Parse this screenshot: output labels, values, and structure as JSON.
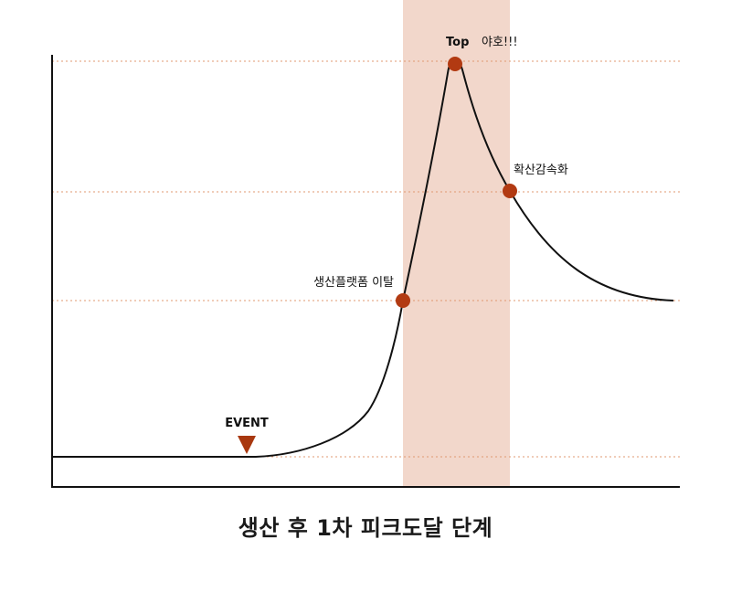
{
  "caption": "생산 후 1차 피크도달 단계",
  "labels": {
    "event": "EVENT",
    "top": "Top",
    "top_note": "야호!!!",
    "platform_exit": "생산플랫폼 이탈",
    "diffusion_slowdown": "확산감속화"
  },
  "colors": {
    "curve": "#111111",
    "axis": "#111111",
    "marker": "#b23a12",
    "event_marker": "#a8380f",
    "highlight_band": "#f2d7cb",
    "guide_line": "#e09a72"
  }
}
